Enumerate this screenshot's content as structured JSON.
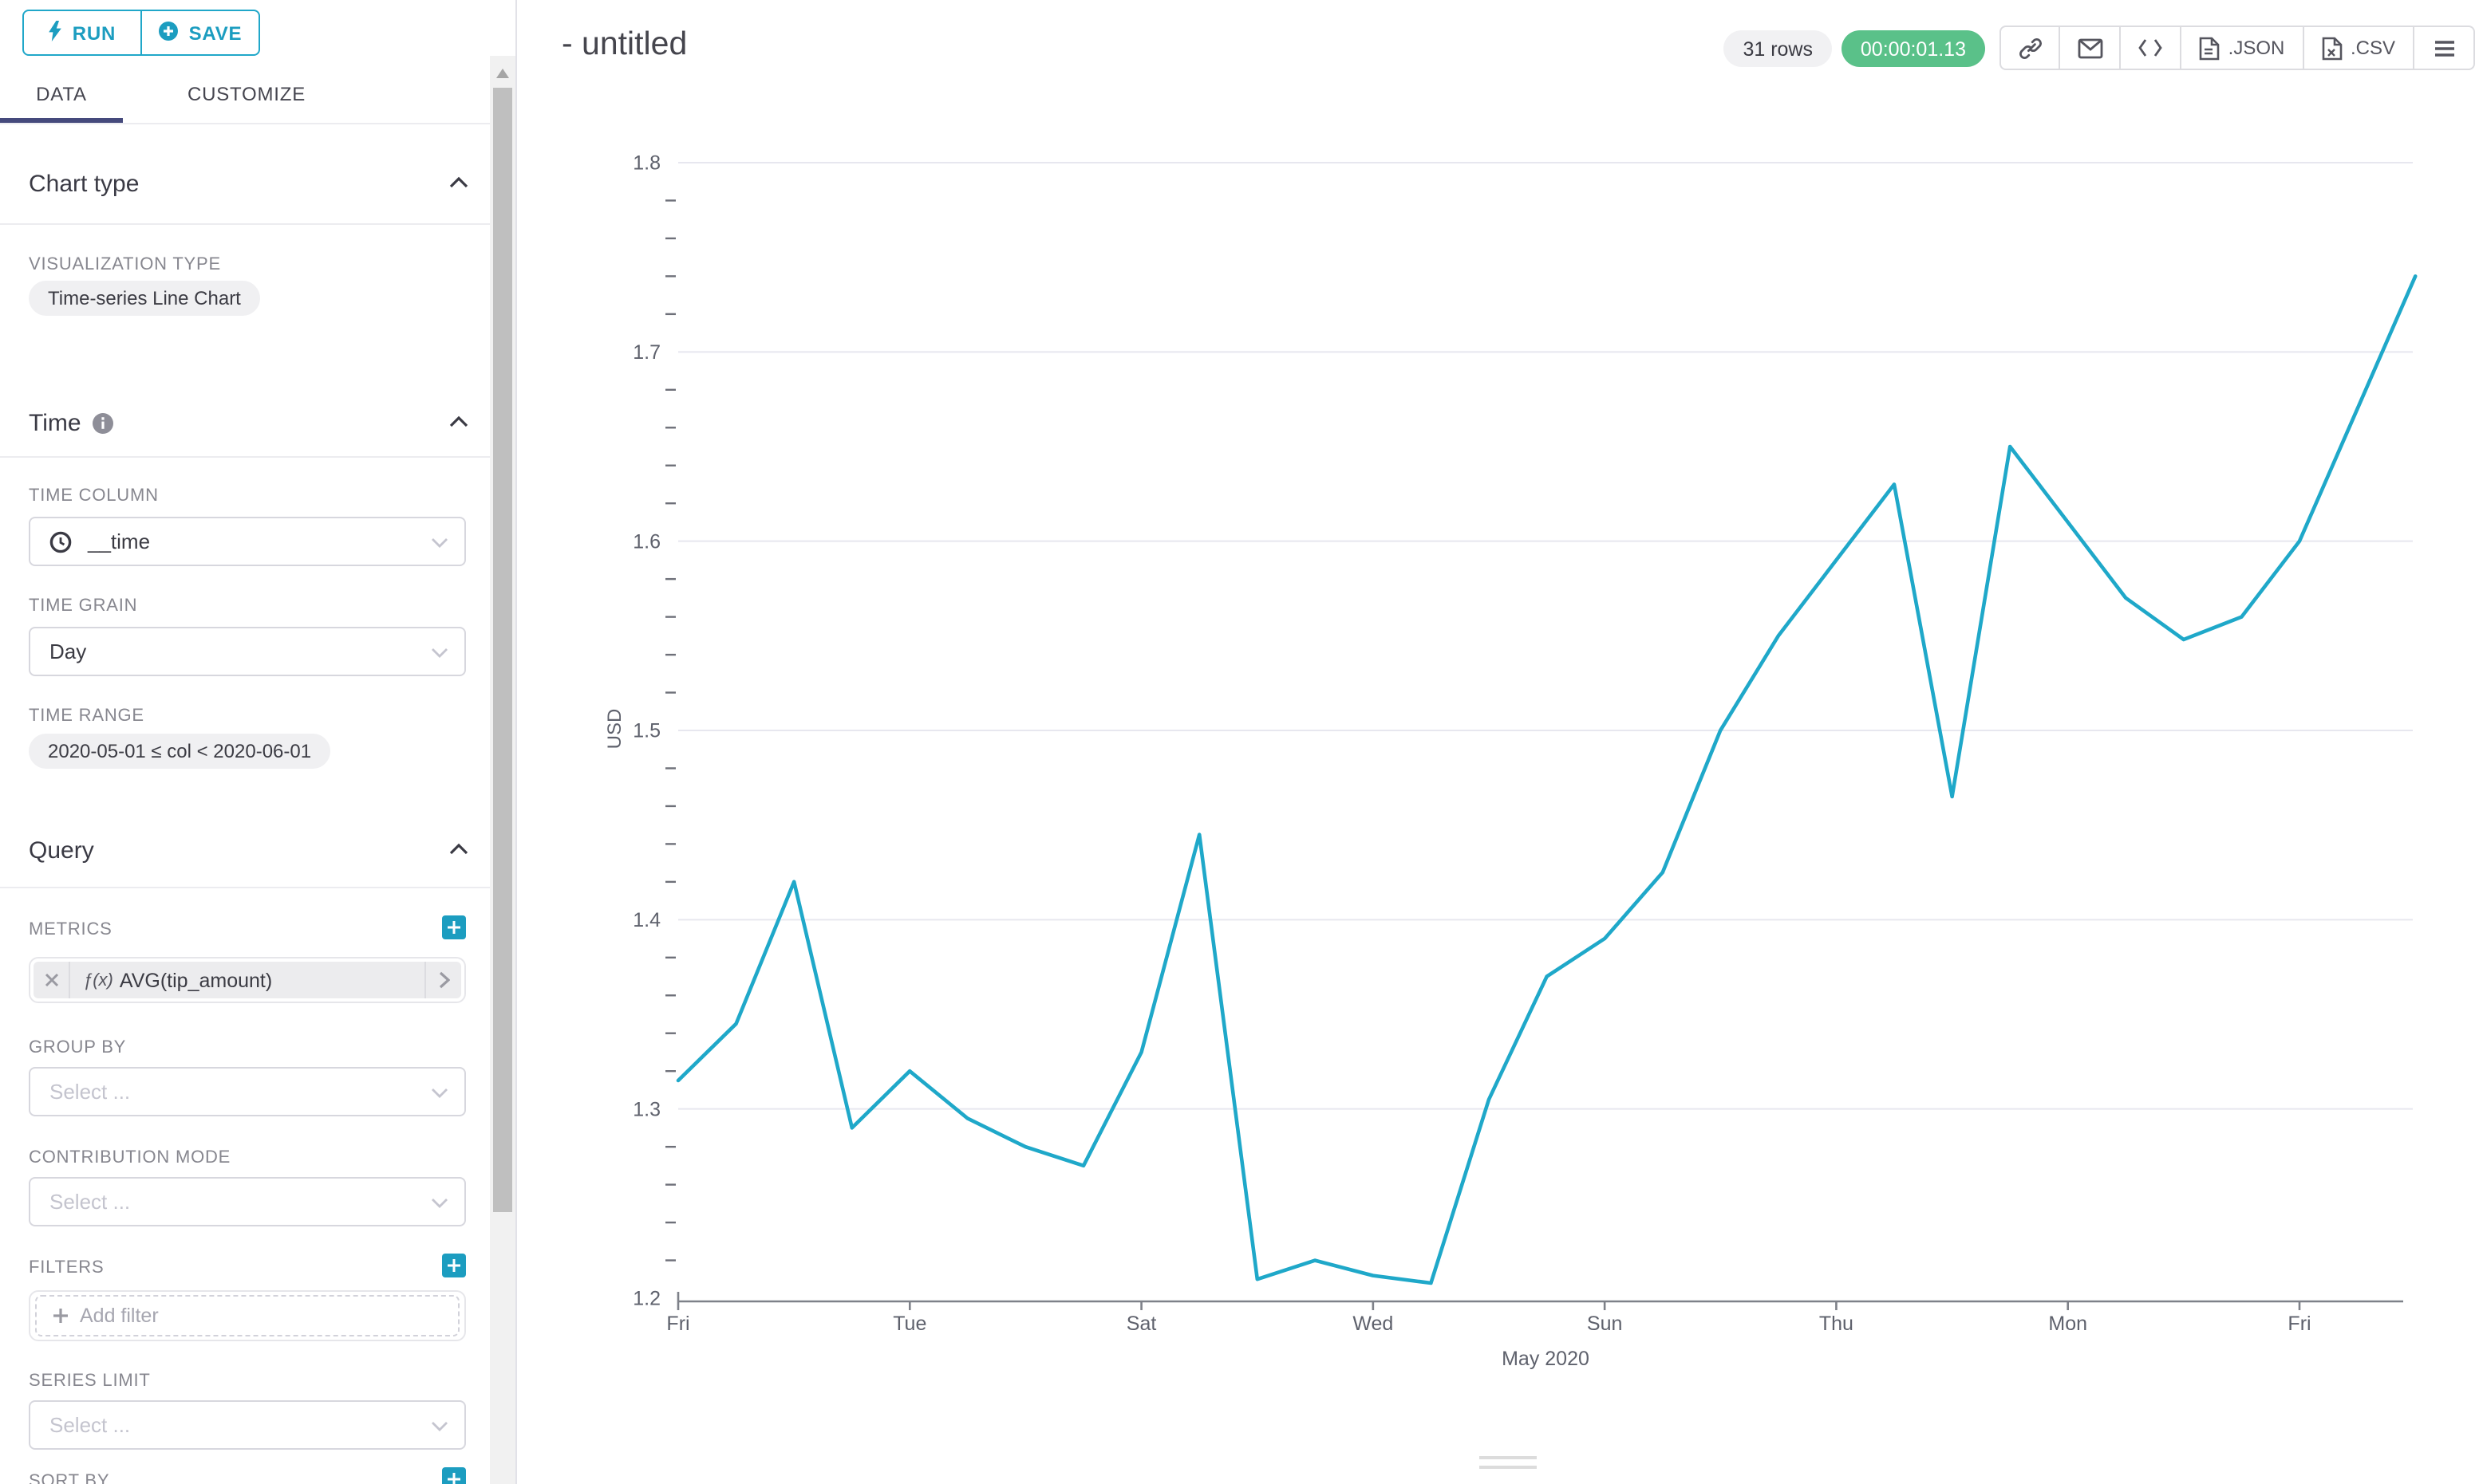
{
  "toolbar": {
    "run_label": "RUN",
    "save_label": "SAVE"
  },
  "tabs": {
    "data": "DATA",
    "customize": "CUSTOMIZE"
  },
  "panel": {
    "chart_type": {
      "title": "Chart type",
      "viz_type_label": "VISUALIZATION TYPE",
      "viz_type_value": "Time-series Line Chart"
    },
    "time": {
      "title": "Time",
      "time_column_label": "TIME COLUMN",
      "time_column_value": "__time",
      "time_grain_label": "TIME GRAIN",
      "time_grain_value": "Day",
      "time_range_label": "TIME RANGE",
      "time_range_value": "2020-05-01 ≤ col < 2020-06-01"
    },
    "query": {
      "title": "Query",
      "metrics_label": "METRICS",
      "metric_fx": "ƒ(x)",
      "metric_value": "AVG(tip_amount)",
      "group_by_label": "GROUP BY",
      "group_by_placeholder": "Select ...",
      "contribution_label": "CONTRIBUTION MODE",
      "contribution_placeholder": "Select ...",
      "filters_label": "FILTERS",
      "add_filter_label": "Add filter",
      "series_limit_label": "SERIES LIMIT",
      "series_limit_placeholder": "Select ...",
      "sort_by_label": "SORT BY"
    }
  },
  "header": {
    "title": "- untitled",
    "rows_badge": "31 rows",
    "timer_badge": "00:00:01.13",
    "json_label": ".JSON",
    "csv_label": ".CSV"
  },
  "colors": {
    "accent": "#20A7C9",
    "line": "#1FA8C9",
    "success": "#5AC189",
    "tab_indicator": "#454A7C",
    "gridline": "#E7E7EF",
    "axis": "#7E8189",
    "axis_text": "#5E616C"
  },
  "chart_data": {
    "type": "line",
    "title": "",
    "series": [
      {
        "name": "AVG(tip_amount)",
        "values": [
          1.315,
          1.345,
          1.42,
          1.29,
          1.32,
          1.295,
          1.28,
          1.27,
          1.33,
          1.445,
          1.21,
          1.22,
          1.212,
          1.208,
          1.305,
          1.37,
          1.39,
          1.425,
          1.5,
          1.55,
          1.59,
          1.63,
          1.465,
          1.65,
          1.61,
          1.57,
          1.548,
          1.56,
          1.6,
          1.67,
          1.74
        ]
      }
    ],
    "num_points": 31,
    "x_tick_labels": [
      "Fri",
      "Tue",
      "Sat",
      "Wed",
      "Sun",
      "Thu",
      "Mon",
      "Fri"
    ],
    "x_tick_positions": [
      0,
      4,
      8,
      12,
      16,
      20,
      24,
      28
    ],
    "x_axis_label": "May 2020",
    "ylabel": "USD",
    "ylim": [
      1.2,
      1.8
    ],
    "y_major_ticks": [
      1.2,
      1.3,
      1.4,
      1.5,
      1.6,
      1.7,
      1.8
    ],
    "y_minor_step": 0.02,
    "grid": "horizontal",
    "legend": "none"
  }
}
